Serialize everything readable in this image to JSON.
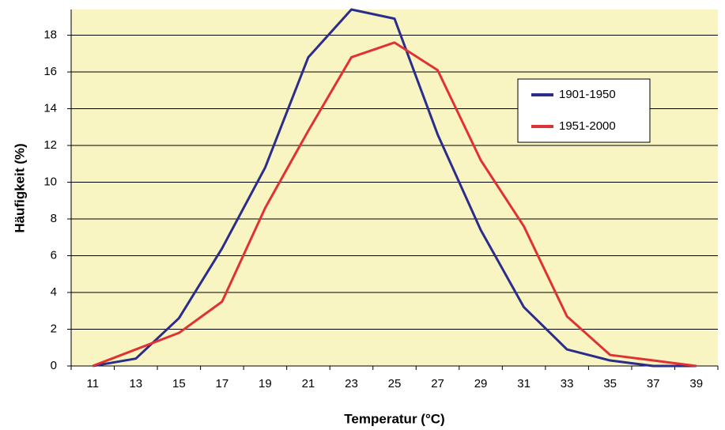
{
  "chart_data": {
    "type": "line",
    "x_label": "Temperatur (°C)",
    "y_label": "Häufigkeit (%)",
    "categories": [
      "11",
      "13",
      "15",
      "17",
      "19",
      "21",
      "23",
      "25",
      "27",
      "29",
      "31",
      "33",
      "35",
      "37",
      "39"
    ],
    "series": [
      {
        "name": "1901-1950",
        "color": "#2b2c8c",
        "values": [
          0,
          0.4,
          2.6,
          6.4,
          10.8,
          16.8,
          19.4,
          18.9,
          12.6,
          7.4,
          3.2,
          0.9,
          0.3,
          0,
          0
        ]
      },
      {
        "name": "1951-2000",
        "color": "#e03232",
        "values": [
          0,
          0.9,
          1.8,
          3.5,
          8.6,
          12.8,
          16.8,
          17.6,
          16.1,
          11.2,
          7.6,
          2.7,
          0.6,
          0.3,
          0
        ]
      }
    ],
    "ylim": [
      0,
      19.4
    ],
    "yticks": [
      0,
      2,
      4,
      6,
      8,
      10,
      12,
      14,
      16,
      18
    ],
    "grid": true,
    "background": "#f8f5c2"
  }
}
